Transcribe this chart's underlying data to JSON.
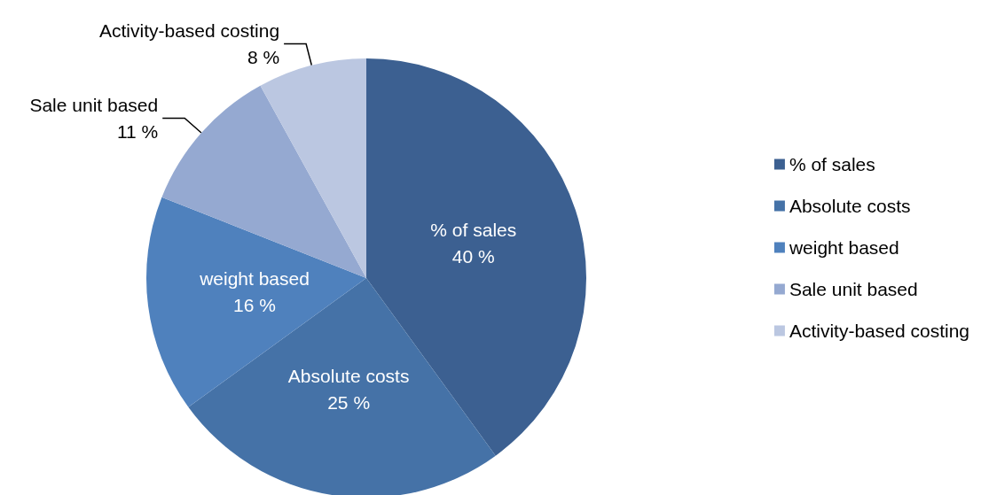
{
  "chart_data": {
    "type": "pie",
    "categories": [
      "% of sales",
      "Absolute costs",
      "weight based",
      "Sale unit based",
      "Activity-based costing"
    ],
    "values": [
      40,
      25,
      16,
      11,
      8
    ],
    "value_labels": [
      "40 %",
      "25 %",
      "16 %",
      "11 %",
      "8 %"
    ],
    "colors": [
      "#3c6091",
      "#4572a7",
      "#4f81bd",
      "#95a9d1",
      "#bbc7e1"
    ],
    "legend": "right"
  }
}
